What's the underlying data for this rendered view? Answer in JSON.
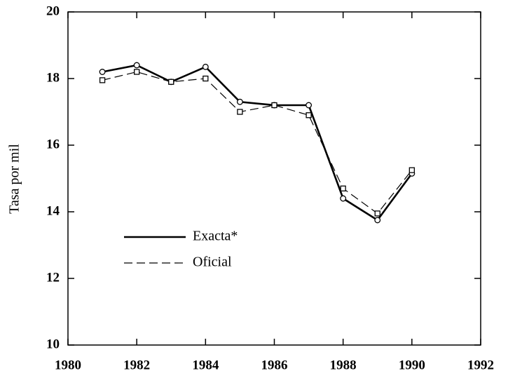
{
  "chart_data": {
    "type": "line",
    "ylabel": "Tasa por mil",
    "x": [
      1981,
      1982,
      1983,
      1984,
      1985,
      1986,
      1987,
      1988,
      1989,
      1990
    ],
    "series": [
      {
        "name": "Exacta*",
        "color": "#000000",
        "linestyle": "solid",
        "marker": "circle",
        "values": [
          18.2,
          18.4,
          17.9,
          18.35,
          17.3,
          17.2,
          17.2,
          14.4,
          13.75,
          15.15
        ]
      },
      {
        "name": "Oficial",
        "color": "#000000",
        "linestyle": "dashed",
        "marker": "square",
        "values": [
          17.95,
          18.2,
          17.9,
          18.0,
          17.0,
          17.2,
          16.9,
          14.7,
          13.95,
          15.25
        ]
      }
    ],
    "xlim": [
      1980,
      1992
    ],
    "xticks": [
      1980,
      1982,
      1984,
      1986,
      1988,
      1990,
      1992
    ],
    "ylim": [
      10,
      20
    ],
    "yticks": [
      10,
      12,
      14,
      16,
      18,
      20
    ],
    "legend": "lower left"
  }
}
